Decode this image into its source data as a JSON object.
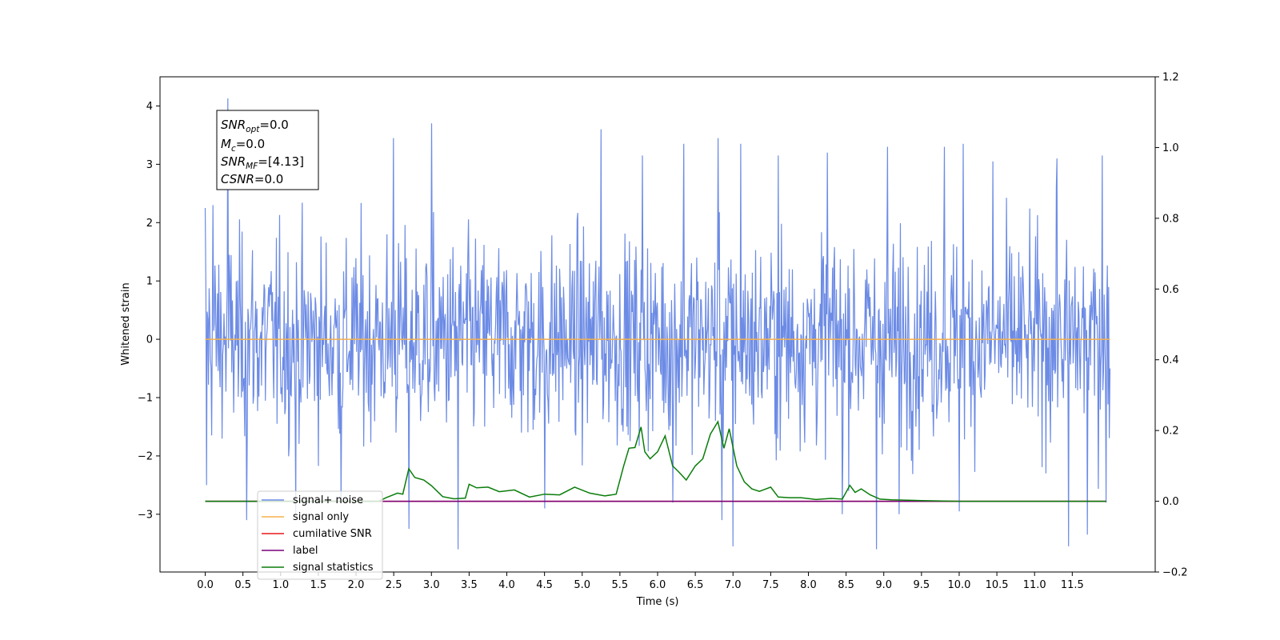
{
  "chart_data": {
    "type": "line",
    "xlabel": "Time (s)",
    "ylabel": "Whitened strain",
    "xlim": [
      -0.6,
      12.6
    ],
    "ylim": [
      -3.99,
      4.5
    ],
    "y2lim": [
      -0.2,
      1.2
    ],
    "x_ticks": [
      "0.0",
      "0.5",
      "1.0",
      "1.5",
      "2.0",
      "2.5",
      "3.0",
      "3.5",
      "4.0",
      "4.5",
      "5.0",
      "5.5",
      "6.0",
      "6.5",
      "7.0",
      "7.5",
      "8.0",
      "8.5",
      "9.0",
      "9.5",
      "10.0",
      "10.5",
      "11.0",
      "11.5"
    ],
    "y_ticks": [
      "−3",
      "−2",
      "−1",
      "0",
      "1",
      "2",
      "3",
      "4"
    ],
    "y2_ticks": [
      "−0.2",
      "0.0",
      "0.2",
      "0.4",
      "0.6",
      "0.8",
      "1.0",
      "1.2"
    ],
    "grid": false,
    "legend_position": "lower-left",
    "annotation": {
      "lines": [
        {
          "base": "SNR",
          "sub": "opt",
          "value": "=0.0"
        },
        {
          "base": "M",
          "sub": "c",
          "value": "=0.0"
        },
        {
          "base": "SNR",
          "sub": "MF",
          "value": "=[4.13]"
        },
        {
          "base": "CSNR",
          "sub": "",
          "value": "=0.0"
        }
      ]
    },
    "series": [
      {
        "name": "signal+ noise",
        "color": "#6c8be5",
        "axis": "left",
        "style": "noise",
        "x_range": [
          0.0,
          12.0
        ],
        "std": 0.85,
        "samples_shown": 1400,
        "peaks": [
          [
            0.0,
            2.25
          ],
          [
            0.02,
            -2.5
          ],
          [
            0.1,
            2.3
          ],
          [
            0.3,
            4.13
          ],
          [
            0.55,
            -3.1
          ],
          [
            1.2,
            -3.0
          ],
          [
            1.8,
            -2.8
          ],
          [
            2.5,
            3.45
          ],
          [
            2.7,
            -3.25
          ],
          [
            3.0,
            3.7
          ],
          [
            3.35,
            -3.6
          ],
          [
            4.5,
            -2.9
          ],
          [
            5.25,
            3.6
          ],
          [
            5.8,
            3.15
          ],
          [
            6.2,
            -2.8
          ],
          [
            6.35,
            3.35
          ],
          [
            6.8,
            3.45
          ],
          [
            6.85,
            -3.1
          ],
          [
            7.0,
            -3.55
          ],
          [
            7.1,
            3.35
          ],
          [
            7.6,
            3.15
          ],
          [
            8.25,
            3.2
          ],
          [
            8.45,
            -3.0
          ],
          [
            8.9,
            -3.6
          ],
          [
            9.05,
            3.3
          ],
          [
            9.2,
            -3.0
          ],
          [
            9.8,
            3.3
          ],
          [
            10.0,
            -2.95
          ],
          [
            10.05,
            3.35
          ],
          [
            10.45,
            3.05
          ],
          [
            11.3,
            3.1
          ],
          [
            11.45,
            -3.55
          ],
          [
            11.7,
            -3.35
          ],
          [
            11.9,
            3.15
          ],
          [
            11.95,
            -2.8
          ]
        ]
      },
      {
        "name": "signal only",
        "color": "#f5b04a",
        "axis": "left",
        "x": [
          0.0,
          12.0
        ],
        "y": [
          0.0,
          0.0
        ]
      },
      {
        "name": "cumilative SNR",
        "color": "#e8191b",
        "axis": "right",
        "x": [
          0.0,
          11.95
        ],
        "y": [
          0.0,
          0.0
        ]
      },
      {
        "name": "label",
        "color": "#7a007a",
        "axis": "right",
        "x": [
          0.0,
          11.95
        ],
        "y": [
          0.0,
          0.0
        ]
      },
      {
        "name": "signal statistics",
        "color": "#0a7d0a",
        "axis": "right",
        "x": [
          0.0,
          2.3,
          2.4,
          2.55,
          2.62,
          2.7,
          2.78,
          2.9,
          3.0,
          3.15,
          3.3,
          3.45,
          3.5,
          3.6,
          3.75,
          3.9,
          4.1,
          4.3,
          4.5,
          4.7,
          4.9,
          5.1,
          5.3,
          5.45,
          5.55,
          5.62,
          5.7,
          5.78,
          5.83,
          5.9,
          6.0,
          6.1,
          6.2,
          6.28,
          6.38,
          6.5,
          6.6,
          6.7,
          6.8,
          6.88,
          6.95,
          7.05,
          7.15,
          7.25,
          7.35,
          7.5,
          7.6,
          7.75,
          7.9,
          8.1,
          8.3,
          8.45,
          8.55,
          8.62,
          8.7,
          8.82,
          8.95,
          9.1,
          9.5,
          10.0,
          11.95
        ],
        "y": [
          0.0,
          0.0,
          0.01,
          0.023,
          0.02,
          0.092,
          0.067,
          0.06,
          0.044,
          0.013,
          0.007,
          0.009,
          0.048,
          0.038,
          0.04,
          0.027,
          0.032,
          0.012,
          0.02,
          0.018,
          0.04,
          0.023,
          0.015,
          0.02,
          0.1,
          0.15,
          0.152,
          0.21,
          0.14,
          0.12,
          0.14,
          0.185,
          0.1,
          0.083,
          0.06,
          0.1,
          0.12,
          0.19,
          0.225,
          0.15,
          0.205,
          0.1,
          0.055,
          0.035,
          0.028,
          0.04,
          0.012,
          0.01,
          0.01,
          0.005,
          0.008,
          0.006,
          0.045,
          0.025,
          0.035,
          0.018,
          0.006,
          0.004,
          0.002,
          0.0,
          0.0
        ]
      }
    ]
  }
}
